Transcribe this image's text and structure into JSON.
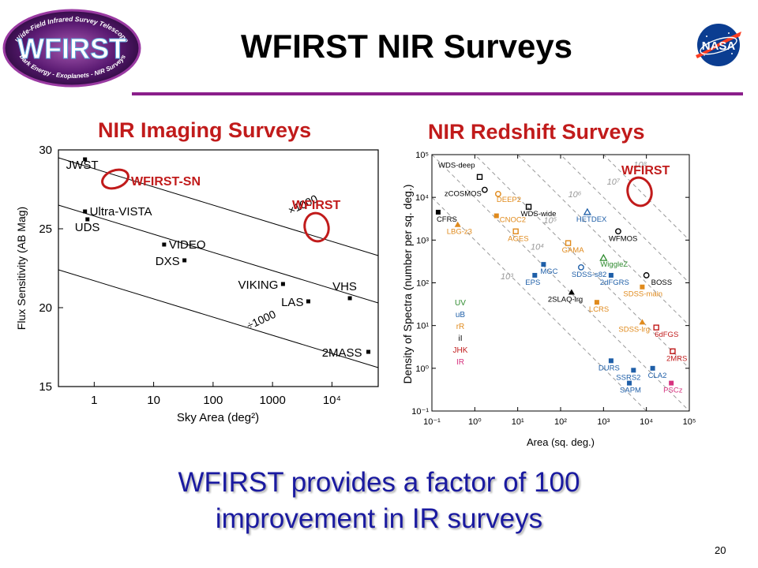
{
  "slide": {
    "title": "WFIRST NIR Surveys",
    "page_number": "20",
    "bottom_line1": "WFIRST provides a factor of 100",
    "bottom_line2": "improvement in IR surveys"
  },
  "logos": {
    "wfirst": {
      "word": "WFIRST",
      "top_arc": "Wide-Field Infrared Survey Telescope",
      "bottom_arc": "Dark Energy - Exoplanets - NIR Surveys"
    },
    "nasa": {
      "word": "NASA"
    }
  },
  "left_panel": {
    "title": "NIR Imaging Surveys",
    "xlabel": "Sky Area (deg²)",
    "ylabel": "Flux Sensitivity (AB Mag)",
    "xticks": [
      "1",
      "10",
      "100",
      "1000",
      "10⁴"
    ],
    "yticks": [
      "30",
      "25",
      "20",
      "15"
    ],
    "line_labels": [
      "×1000",
      "÷1000"
    ],
    "markers": [
      {
        "label": "WFIRST-SN",
        "color": "#c11b1b"
      },
      {
        "label": "WFIRST",
        "color": "#c11b1b"
      }
    ]
  },
  "right_panel": {
    "title": "NIR Redshift Surveys",
    "xlabel": "Area (sq. deg.)",
    "ylabel": "Density of Spectra (number per sq. deg.)",
    "xticks": [
      "10⁻¹",
      "10⁰",
      "10¹",
      "10²",
      "10³",
      "10⁴",
      "10⁵"
    ],
    "yticks": [
      "10⁵",
      "10⁴",
      "10³",
      "10²",
      "10¹",
      "10⁰",
      "10⁻¹"
    ],
    "diagonal_labels": [
      "10³",
      "10⁴",
      "10⁵",
      "10⁶",
      "10⁷",
      "10⁸"
    ],
    "marker": {
      "label": "WFIRST",
      "color": "#c11b1b"
    },
    "legend": [
      {
        "label": "UV",
        "color": "#2e8b2e"
      },
      {
        "label": "uB",
        "color": "#1f5fa8"
      },
      {
        "label": "rR",
        "color": "#e08a1c"
      },
      {
        "label": "iI",
        "color": "#000000"
      },
      {
        "label": "JHK",
        "color": "#c11b1b"
      },
      {
        "label": "IR",
        "color": "#d6337f"
      }
    ]
  },
  "chart_data": [
    {
      "type": "scatter",
      "title": "NIR Imaging Surveys",
      "xlabel": "Sky Area (deg²)",
      "ylabel": "Flux Sensitivity (AB Mag)",
      "x_scale": "log",
      "ylim": [
        15,
        30
      ],
      "points": [
        {
          "name": "JWST",
          "x": 0.7,
          "y": 29.4
        },
        {
          "name": "Ultra-VISTA",
          "x": 0.7,
          "y": 26.1
        },
        {
          "name": "UDS",
          "x": 0.77,
          "y": 25.6
        },
        {
          "name": "VIDEO",
          "x": 15,
          "y": 24
        },
        {
          "name": "DXS",
          "x": 33,
          "y": 23
        },
        {
          "name": "VIKING",
          "x": 1500,
          "y": 21.5
        },
        {
          "name": "LAS",
          "x": 4000,
          "y": 20.4
        },
        {
          "name": "VHS",
          "x": 20000,
          "y": 20.6
        },
        {
          "name": "2MASS",
          "x": 41000,
          "y": 17.2
        }
      ]
    },
    {
      "type": "scatter",
      "title": "NIR Redshift Surveys",
      "xlabel": "Area (sq. deg.)",
      "ylabel": "Density of Spectra (number per sq. deg.)",
      "x_scale": "log",
      "y_scale": "log",
      "points": [
        {
          "name": "WDS-deep",
          "x": 1.3,
          "y": 30000,
          "color": "#000000"
        },
        {
          "name": "zCOSMOS",
          "x": 1.7,
          "y": 15000,
          "color": "#000000"
        },
        {
          "name": "DEEP2",
          "x": 3.5,
          "y": 12000,
          "color": "#e08a1c"
        },
        {
          "name": "CFRS",
          "x": 0.14,
          "y": 4500,
          "color": "#000000"
        },
        {
          "name": "CNOC2",
          "x": 3.2,
          "y": 3700,
          "color": "#e08a1c"
        },
        {
          "name": "LBG-z3",
          "x": 0.4,
          "y": 2300,
          "color": "#e08a1c"
        },
        {
          "name": "WDS-wide",
          "x": 18,
          "y": 6000,
          "color": "#000000"
        },
        {
          "name": "AGES",
          "x": 9,
          "y": 1600,
          "color": "#e08a1c"
        },
        {
          "name": "HETDEX",
          "x": 420,
          "y": 4500,
          "color": "#1f5fa8"
        },
        {
          "name": "WFMOS",
          "x": 2200,
          "y": 1600,
          "color": "#000000"
        },
        {
          "name": "GAMA",
          "x": 150,
          "y": 850,
          "color": "#e08a1c"
        },
        {
          "name": "WiggleZ",
          "x": 1000,
          "y": 380,
          "color": "#2e8b2e"
        },
        {
          "name": "MGC",
          "x": 40,
          "y": 270,
          "color": "#1f5fa8"
        },
        {
          "name": "SDSS-s82",
          "x": 300,
          "y": 230,
          "color": "#1f5fa8"
        },
        {
          "name": "EPS",
          "x": 25,
          "y": 150,
          "color": "#1f5fa8"
        },
        {
          "name": "2dFGRS",
          "x": 1500,
          "y": 150,
          "color": "#1f5fa8"
        },
        {
          "name": "BOSS",
          "x": 10000,
          "y": 150,
          "color": "#000000"
        },
        {
          "name": "SDSS-main",
          "x": 8000,
          "y": 80,
          "color": "#e08a1c"
        },
        {
          "name": "2SLAQ-lrg",
          "x": 180,
          "y": 60,
          "color": "#000000"
        },
        {
          "name": "LCRS",
          "x": 700,
          "y": 35,
          "color": "#e08a1c"
        },
        {
          "name": "SDSS-lrg",
          "x": 8000,
          "y": 12,
          "color": "#e08a1c"
        },
        {
          "name": "6dFGS",
          "x": 17000,
          "y": 9,
          "color": "#c11b1b"
        },
        {
          "name": "2MRS",
          "x": 41000,
          "y": 2.5,
          "color": "#c11b1b"
        },
        {
          "name": "DURS",
          "x": 1500,
          "y": 1.5,
          "color": "#1f5fa8"
        },
        {
          "name": "SSRS2",
          "x": 5000,
          "y": 0.9,
          "color": "#1f5fa8"
        },
        {
          "name": "CLA2",
          "x": 14000,
          "y": 1,
          "color": "#1f5fa8"
        },
        {
          "name": "SAPM",
          "x": 4000,
          "y": 0.45,
          "color": "#1f5fa8"
        },
        {
          "name": "PSCz",
          "x": 38000,
          "y": 0.45,
          "color": "#d6337f"
        }
      ]
    }
  ]
}
